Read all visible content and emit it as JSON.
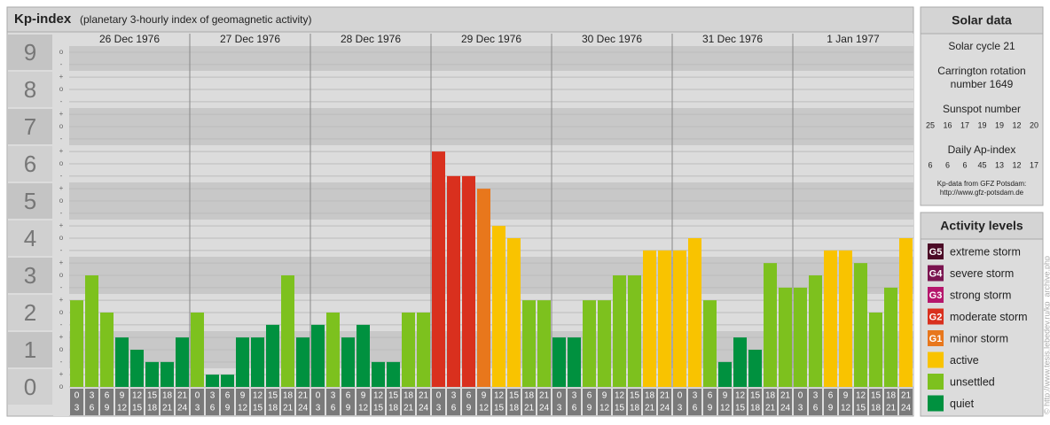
{
  "chart_data": {
    "type": "bar",
    "title": "Kp-index",
    "subtitle": "(planetary 3-hourly index of geomagnetic activity)",
    "ylim": [
      0,
      9.5
    ],
    "yticks": [
      0,
      1,
      2,
      3,
      4,
      5,
      6,
      7,
      8,
      9
    ],
    "minor_ticks": [
      {
        "value": 0,
        "label": "o"
      },
      {
        "value": 0.33,
        "label": "+"
      },
      {
        "value": 0.67,
        "label": "-"
      },
      {
        "value": 1,
        "label": "o"
      },
      {
        "value": 1.33,
        "label": "+"
      },
      {
        "value": 1.67,
        "label": "-"
      },
      {
        "value": 2,
        "label": "o"
      },
      {
        "value": 2.33,
        "label": "+"
      },
      {
        "value": 2.67,
        "label": "-"
      },
      {
        "value": 3,
        "label": "o"
      },
      {
        "value": 3.33,
        "label": "+"
      },
      {
        "value": 3.67,
        "label": "-"
      },
      {
        "value": 4,
        "label": "o"
      },
      {
        "value": 4.33,
        "label": "+"
      },
      {
        "value": 4.67,
        "label": "-"
      },
      {
        "value": 5,
        "label": "o"
      },
      {
        "value": 5.33,
        "label": "+"
      },
      {
        "value": 5.67,
        "label": "-"
      },
      {
        "value": 6,
        "label": "o"
      },
      {
        "value": 6.33,
        "label": "+"
      },
      {
        "value": 6.67,
        "label": "-"
      },
      {
        "value": 7,
        "label": "o"
      },
      {
        "value": 7.33,
        "label": "+"
      },
      {
        "value": 7.67,
        "label": "-"
      },
      {
        "value": 8,
        "label": "o"
      },
      {
        "value": 8.33,
        "label": "+"
      },
      {
        "value": 8.67,
        "label": "-"
      },
      {
        "value": 9,
        "label": "o"
      }
    ],
    "hours": [
      [
        "0",
        "3"
      ],
      [
        "3",
        "6"
      ],
      [
        "6",
        "9"
      ],
      [
        "9",
        "12"
      ],
      [
        "12",
        "15"
      ],
      [
        "15",
        "18"
      ],
      [
        "18",
        "21"
      ],
      [
        "21",
        "24"
      ]
    ],
    "days": [
      {
        "date": "26 Dec 1976",
        "values": [
          2.33,
          3,
          2,
          1.33,
          1,
          0.67,
          0.67,
          1.33
        ],
        "colors": [
          "#7dc11e",
          "#7dc11e",
          "#7dc11e",
          "#00913f",
          "#00913f",
          "#00913f",
          "#00913f",
          "#00913f"
        ]
      },
      {
        "date": "27 Dec 1976",
        "values": [
          2,
          0.33,
          0.33,
          1.33,
          1.33,
          1.67,
          3,
          1.33
        ],
        "colors": [
          "#7dc11e",
          "#00913f",
          "#00913f",
          "#00913f",
          "#00913f",
          "#00913f",
          "#7dc11e",
          "#00913f"
        ]
      },
      {
        "date": "28 Dec 1976",
        "values": [
          1.67,
          2,
          1.33,
          1.67,
          0.67,
          0.67,
          2,
          2
        ],
        "colors": [
          "#00913f",
          "#7dc11e",
          "#00913f",
          "#00913f",
          "#00913f",
          "#00913f",
          "#7dc11e",
          "#7dc11e"
        ]
      },
      {
        "date": "29 Dec 1976",
        "values": [
          6.33,
          5.67,
          5.67,
          5.33,
          4.33,
          4,
          2.33,
          2.33
        ],
        "colors": [
          "#d9301e",
          "#d9301e",
          "#d9301e",
          "#e8771c",
          "#f9c300",
          "#f9c300",
          "#7dc11e",
          "#7dc11e"
        ]
      },
      {
        "date": "30 Dec 1976",
        "values": [
          1.33,
          1.33,
          2.33,
          2.33,
          3,
          3,
          3.67,
          3.67
        ],
        "colors": [
          "#00913f",
          "#00913f",
          "#7dc11e",
          "#7dc11e",
          "#7dc11e",
          "#7dc11e",
          "#f9c300",
          "#f9c300"
        ]
      },
      {
        "date": "31 Dec 1976",
        "values": [
          3.67,
          4,
          2.33,
          0.67,
          1.33,
          1,
          3.33,
          2.67
        ],
        "colors": [
          "#f9c300",
          "#f9c300",
          "#7dc11e",
          "#00913f",
          "#00913f",
          "#00913f",
          "#7dc11e",
          "#7dc11e"
        ]
      },
      {
        "date": "1 Jan 1977",
        "values": [
          2.67,
          3,
          3.67,
          3.67,
          3.33,
          2,
          2.67,
          4
        ],
        "colors": [
          "#7dc11e",
          "#7dc11e",
          "#f9c300",
          "#f9c300",
          "#7dc11e",
          "#7dc11e",
          "#7dc11e",
          "#f9c300"
        ]
      }
    ],
    "solar": {
      "title": "Solar data",
      "cycle": "Solar cycle 21",
      "carrington": [
        "Carrington rotation",
        "number 1649"
      ],
      "sunspot_title": "Sunspot number",
      "sunspot": [
        25,
        16,
        17,
        19,
        19,
        12,
        20
      ],
      "ap_title": "Daily Ap-index",
      "ap": [
        6,
        6,
        6,
        45,
        13,
        12,
        17
      ],
      "source": [
        "Kp-data from GFZ Potsdam:",
        "http://www.gfz-potsdam.de"
      ]
    },
    "legend_title": "Activity levels",
    "legend": [
      {
        "code": "G5",
        "label": "extreme storm",
        "color": "#4b0a26"
      },
      {
        "code": "G4",
        "label": "severe storm",
        "color": "#7a1450"
      },
      {
        "code": "G3",
        "label": "strong storm",
        "color": "#b5166c"
      },
      {
        "code": "G2",
        "label": "moderate storm",
        "color": "#d9301e"
      },
      {
        "code": "G1",
        "label": "minor storm",
        "color": "#e8771c"
      },
      {
        "label": "active",
        "color": "#f9c300"
      },
      {
        "label": "unsettled",
        "color": "#7dc11e"
      },
      {
        "label": "quiet",
        "color": "#00913f"
      }
    ],
    "credit": "© http://www.tesis.lebedev.ru/kp_archive.php"
  }
}
